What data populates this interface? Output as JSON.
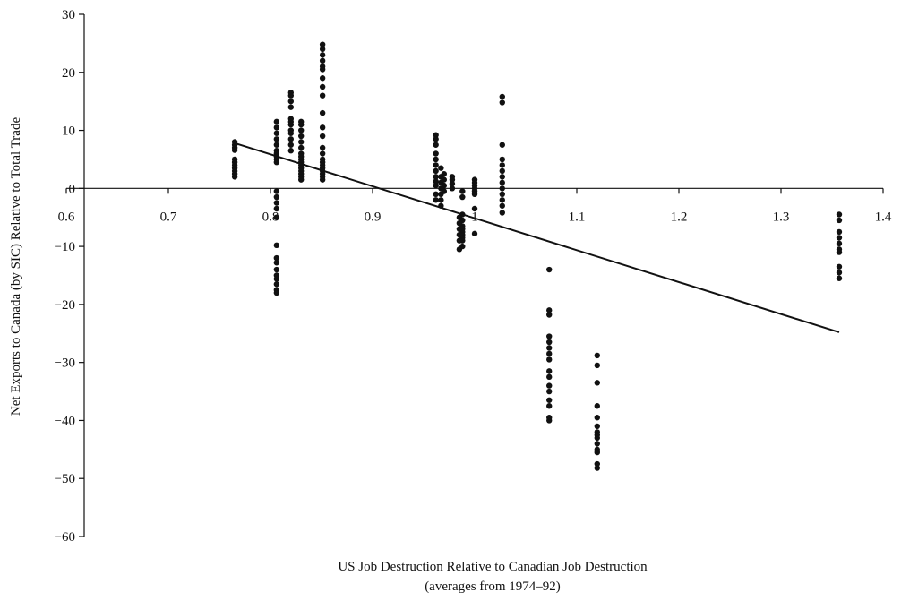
{
  "chart_data": {
    "type": "scatter",
    "xlabel_line1": "US Job Destruction Relative to Canadian Job Destruction",
    "xlabel_line2": "(averages from 1974–92)",
    "ylabel": "Net Exports to Canada (by SIC) Relative to Total Trade",
    "xlim": [
      0.6,
      1.4
    ],
    "ylim": [
      -60,
      30
    ],
    "xticks": [
      0.6,
      0.7,
      0.8,
      0.9,
      1.0,
      1.1,
      1.2,
      1.3,
      1.4
    ],
    "xtick_labels": [
      "0.6",
      "0.7",
      "0.8",
      "0.9",
      "1",
      "1.1",
      "1.2",
      "1.3",
      "1.4"
    ],
    "yticks": [
      30,
      20,
      10,
      0,
      -10,
      -20,
      -30,
      -40,
      -50,
      -60
    ],
    "ytick_labels": [
      "30",
      "20",
      "10",
      "0",
      "−10",
      "−20",
      "−30",
      "−40",
      "−50",
      "−60"
    ],
    "grid": false,
    "legend": "none",
    "marker_color": "#111111",
    "line_color": "#111111",
    "trend_line": {
      "x": [
        0.765,
        1.357
      ],
      "y": [
        7.8,
        -24.8
      ]
    },
    "points": [
      [
        0.765,
        8.0
      ],
      [
        0.765,
        7.5
      ],
      [
        0.765,
        7.0
      ],
      [
        0.765,
        6.6
      ],
      [
        0.765,
        5.0
      ],
      [
        0.765,
        4.5
      ],
      [
        0.765,
        4.0
      ],
      [
        0.765,
        3.5
      ],
      [
        0.765,
        3.0
      ],
      [
        0.765,
        2.5
      ],
      [
        0.765,
        2.0
      ],
      [
        0.806,
        11.5
      ],
      [
        0.806,
        10.5
      ],
      [
        0.806,
        9.5
      ],
      [
        0.806,
        8.5
      ],
      [
        0.806,
        7.5
      ],
      [
        0.806,
        6.5
      ],
      [
        0.806,
        6.0
      ],
      [
        0.806,
        5.5
      ],
      [
        0.806,
        5.0
      ],
      [
        0.806,
        4.5
      ],
      [
        0.806,
        -0.5
      ],
      [
        0.806,
        -1.5
      ],
      [
        0.806,
        -2.5
      ],
      [
        0.806,
        -3.5
      ],
      [
        0.806,
        -5.0
      ],
      [
        0.806,
        -9.8
      ],
      [
        0.806,
        -12.0
      ],
      [
        0.806,
        -12.8
      ],
      [
        0.806,
        -14.0
      ],
      [
        0.806,
        -15.0
      ],
      [
        0.806,
        -15.6
      ],
      [
        0.806,
        -16.5
      ],
      [
        0.806,
        -17.5
      ],
      [
        0.806,
        -18.0
      ],
      [
        0.82,
        16.5
      ],
      [
        0.82,
        16.0
      ],
      [
        0.82,
        15.0
      ],
      [
        0.82,
        14.0
      ],
      [
        0.82,
        12.0
      ],
      [
        0.82,
        11.5
      ],
      [
        0.82,
        11.0
      ],
      [
        0.82,
        10.0
      ],
      [
        0.82,
        9.5
      ],
      [
        0.82,
        8.5
      ],
      [
        0.82,
        7.5
      ],
      [
        0.82,
        6.5
      ],
      [
        0.83,
        11.5
      ],
      [
        0.83,
        11.0
      ],
      [
        0.83,
        10.0
      ],
      [
        0.83,
        9.0
      ],
      [
        0.83,
        8.0
      ],
      [
        0.83,
        7.0
      ],
      [
        0.83,
        6.0
      ],
      [
        0.83,
        5.5
      ],
      [
        0.83,
        5.0
      ],
      [
        0.83,
        4.5
      ],
      [
        0.83,
        4.0
      ],
      [
        0.83,
        3.5
      ],
      [
        0.83,
        3.0
      ],
      [
        0.83,
        2.5
      ],
      [
        0.83,
        2.0
      ],
      [
        0.83,
        1.5
      ],
      [
        0.851,
        24.8
      ],
      [
        0.851,
        24.0
      ],
      [
        0.851,
        23.0
      ],
      [
        0.851,
        22.0
      ],
      [
        0.851,
        21.0
      ],
      [
        0.851,
        20.5
      ],
      [
        0.851,
        19.0
      ],
      [
        0.851,
        17.5
      ],
      [
        0.851,
        16.0
      ],
      [
        0.851,
        13.0
      ],
      [
        0.851,
        10.5
      ],
      [
        0.851,
        9.0
      ],
      [
        0.851,
        7.0
      ],
      [
        0.851,
        6.0
      ],
      [
        0.851,
        5.0
      ],
      [
        0.851,
        4.5
      ],
      [
        0.851,
        4.0
      ],
      [
        0.851,
        3.5
      ],
      [
        0.851,
        3.0
      ],
      [
        0.851,
        2.5
      ],
      [
        0.851,
        2.0
      ],
      [
        0.851,
        1.5
      ],
      [
        0.962,
        9.2
      ],
      [
        0.962,
        8.5
      ],
      [
        0.962,
        7.5
      ],
      [
        0.962,
        6.0
      ],
      [
        0.962,
        5.0
      ],
      [
        0.962,
        4.0
      ],
      [
        0.962,
        3.0
      ],
      [
        0.962,
        2.0
      ],
      [
        0.962,
        1.2
      ],
      [
        0.962,
        0.5
      ],
      [
        0.962,
        -1.0
      ],
      [
        0.962,
        -2.0
      ],
      [
        0.967,
        3.5
      ],
      [
        0.967,
        2.0
      ],
      [
        0.967,
        1.0
      ],
      [
        0.967,
        0.0
      ],
      [
        0.967,
        -1.0
      ],
      [
        0.967,
        -2.0
      ],
      [
        0.967,
        -3.0
      ],
      [
        0.97,
        2.5
      ],
      [
        0.97,
        1.5
      ],
      [
        0.97,
        0.5
      ],
      [
        0.97,
        -0.5
      ],
      [
        0.978,
        2.0
      ],
      [
        0.978,
        1.5
      ],
      [
        0.978,
        0.8
      ],
      [
        0.978,
        0.0
      ],
      [
        0.988,
        -0.5
      ],
      [
        0.988,
        -1.5
      ],
      [
        0.988,
        -4.5
      ],
      [
        0.988,
        -5.5
      ],
      [
        0.988,
        -6.5
      ],
      [
        0.988,
        -7.0
      ],
      [
        0.988,
        -7.5
      ],
      [
        0.988,
        -8.0
      ],
      [
        0.988,
        -8.5
      ],
      [
        0.988,
        -9.0
      ],
      [
        0.988,
        -10.0
      ],
      [
        0.985,
        -5.0
      ],
      [
        0.985,
        -6.0
      ],
      [
        0.985,
        -7.0
      ],
      [
        0.985,
        -8.0
      ],
      [
        0.985,
        -9.0
      ],
      [
        0.985,
        -10.5
      ],
      [
        1.0,
        1.5
      ],
      [
        1.0,
        1.0
      ],
      [
        1.0,
        0.5
      ],
      [
        1.0,
        0.0
      ],
      [
        1.0,
        -0.5
      ],
      [
        1.0,
        -1.0
      ],
      [
        1.0,
        -3.5
      ],
      [
        1.0,
        -7.8
      ],
      [
        1.027,
        15.8
      ],
      [
        1.027,
        14.8
      ],
      [
        1.027,
        7.5
      ],
      [
        1.027,
        5.0
      ],
      [
        1.027,
        4.0
      ],
      [
        1.027,
        3.0
      ],
      [
        1.027,
        2.0
      ],
      [
        1.027,
        1.0
      ],
      [
        1.027,
        0.0
      ],
      [
        1.027,
        -1.0
      ],
      [
        1.027,
        -2.0
      ],
      [
        1.027,
        -3.0
      ],
      [
        1.027,
        -4.2
      ],
      [
        1.073,
        -14.0
      ],
      [
        1.073,
        -21.0
      ],
      [
        1.073,
        -21.8
      ],
      [
        1.073,
        -25.5
      ],
      [
        1.073,
        -26.5
      ],
      [
        1.073,
        -27.5
      ],
      [
        1.073,
        -28.5
      ],
      [
        1.073,
        -29.5
      ],
      [
        1.073,
        -31.5
      ],
      [
        1.073,
        -32.5
      ],
      [
        1.073,
        -34.0
      ],
      [
        1.073,
        -35.0
      ],
      [
        1.073,
        -36.5
      ],
      [
        1.073,
        -37.5
      ],
      [
        1.073,
        -39.5
      ],
      [
        1.073,
        -40.0
      ],
      [
        1.12,
        -28.8
      ],
      [
        1.12,
        -30.5
      ],
      [
        1.12,
        -33.5
      ],
      [
        1.12,
        -37.5
      ],
      [
        1.12,
        -39.5
      ],
      [
        1.12,
        -41.0
      ],
      [
        1.12,
        -42.0
      ],
      [
        1.12,
        -42.5
      ],
      [
        1.12,
        -43.0
      ],
      [
        1.12,
        -44.0
      ],
      [
        1.12,
        -45.0
      ],
      [
        1.12,
        -45.5
      ],
      [
        1.12,
        -47.5
      ],
      [
        1.12,
        -48.2
      ],
      [
        1.357,
        -4.5
      ],
      [
        1.357,
        -5.5
      ],
      [
        1.357,
        -7.5
      ],
      [
        1.357,
        -8.5
      ],
      [
        1.357,
        -9.5
      ],
      [
        1.357,
        -10.5
      ],
      [
        1.357,
        -11.0
      ],
      [
        1.357,
        -13.5
      ],
      [
        1.357,
        -14.5
      ],
      [
        1.357,
        -15.5
      ]
    ]
  }
}
